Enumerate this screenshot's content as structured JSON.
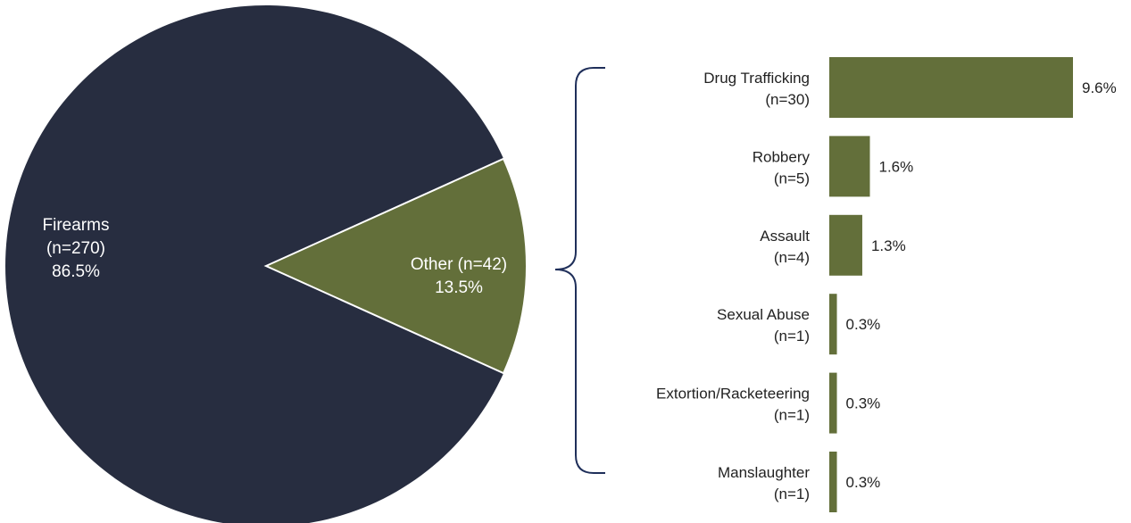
{
  "chart_data": [
    {
      "type": "pie",
      "slices": [
        {
          "label": "Firearms",
          "count": "(n=270)",
          "pct_text": "86.5%",
          "value": 86.5,
          "color": "#272d40"
        },
        {
          "label": "Other (n=42)",
          "count": "",
          "pct_text": "13.5%",
          "value": 13.5,
          "color": "#636f3a"
        }
      ],
      "title": "",
      "legend": "none"
    },
    {
      "type": "bar",
      "orientation": "horizontal",
      "categories": [
        "Drug Trafficking",
        "Robbery",
        "Assault",
        "Sexual Abuse",
        "Extortion/Racketeering",
        "Manslaughter"
      ],
      "counts": [
        "(n=30)",
        "(n=5)",
        "(n=4)",
        "(n=1)",
        "(n=1)",
        "(n=1)"
      ],
      "values": [
        9.6,
        1.6,
        1.3,
        0.3,
        0.3,
        0.3
      ],
      "value_labels": [
        "9.6%",
        "1.6%",
        "1.3%",
        "0.3%",
        "0.3%",
        "0.3%"
      ],
      "bar_color": "#636f3a",
      "xlim": [
        0,
        9.6
      ],
      "grid": false,
      "title": "",
      "xlabel": "",
      "ylabel": ""
    }
  ],
  "colors": {
    "bracket": "#1f2f5a",
    "text": "#222222",
    "pie_text": "#ffffff"
  }
}
